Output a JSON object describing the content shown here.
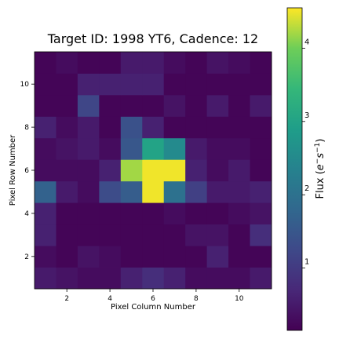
{
  "chart_data": {
    "type": "heatmap",
    "title": "Target ID: 1998 YT6, Cadence: 12",
    "xlabel": "Pixel Column Number",
    "ylabel": "Pixel Row Number",
    "colorbar_label": "Flux ($e^{-}s^{-1}$)",
    "xlim": [
      0.5,
      11.5
    ],
    "ylim": [
      0.5,
      11.5
    ],
    "xticks": [
      2,
      4,
      6,
      8,
      10
    ],
    "yticks": [
      2,
      4,
      6,
      8,
      10
    ],
    "colorbar_ticks": [
      1,
      2,
      3,
      4
    ],
    "vmin": 0.15,
    "vmax": 4.55,
    "colormap": "viridis",
    "rows": [
      1,
      2,
      3,
      4,
      5,
      6,
      7,
      8,
      9,
      10,
      11
    ],
    "columns": [
      1,
      2,
      3,
      4,
      5,
      6,
      7,
      8,
      9,
      10,
      11
    ],
    "values": [
      [
        0.5,
        0.4,
        0.3,
        0.3,
        0.6,
        0.8,
        0.6,
        0.3,
        0.3,
        0.3,
        0.5
      ],
      [
        0.3,
        0.2,
        0.4,
        0.3,
        0.2,
        0.2,
        0.2,
        0.2,
        0.6,
        0.2,
        0.2
      ],
      [
        0.6,
        0.2,
        0.2,
        0.2,
        0.2,
        0.2,
        0.2,
        0.4,
        0.4,
        0.2,
        0.8
      ],
      [
        0.6,
        0.2,
        0.2,
        0.2,
        0.2,
        0.2,
        0.3,
        0.2,
        0.2,
        0.3,
        0.4
      ],
      [
        1.7,
        0.5,
        0.3,
        1.3,
        1.6,
        4.5,
        2.0,
        1.1,
        0.5,
        0.5,
        0.6
      ],
      [
        0.3,
        0.3,
        0.3,
        0.6,
        4.2,
        4.5,
        4.5,
        0.6,
        0.3,
        0.5,
        0.2
      ],
      [
        0.3,
        0.4,
        0.5,
        0.3,
        1.5,
        3.0,
        2.5,
        0.5,
        0.3,
        0.3,
        0.2
      ],
      [
        0.6,
        0.3,
        0.5,
        0.2,
        1.4,
        0.6,
        0.2,
        0.2,
        0.2,
        0.2,
        0.2
      ],
      [
        0.2,
        0.2,
        1.2,
        0.2,
        0.2,
        0.2,
        0.4,
        0.2,
        0.5,
        0.2,
        0.5
      ],
      [
        0.2,
        0.2,
        0.6,
        0.6,
        0.6,
        0.6,
        0.2,
        0.2,
        0.2,
        0.2,
        0.2
      ],
      [
        0.2,
        0.3,
        0.2,
        0.2,
        0.5,
        0.5,
        0.3,
        0.2,
        0.4,
        0.3,
        0.2
      ]
    ]
  }
}
